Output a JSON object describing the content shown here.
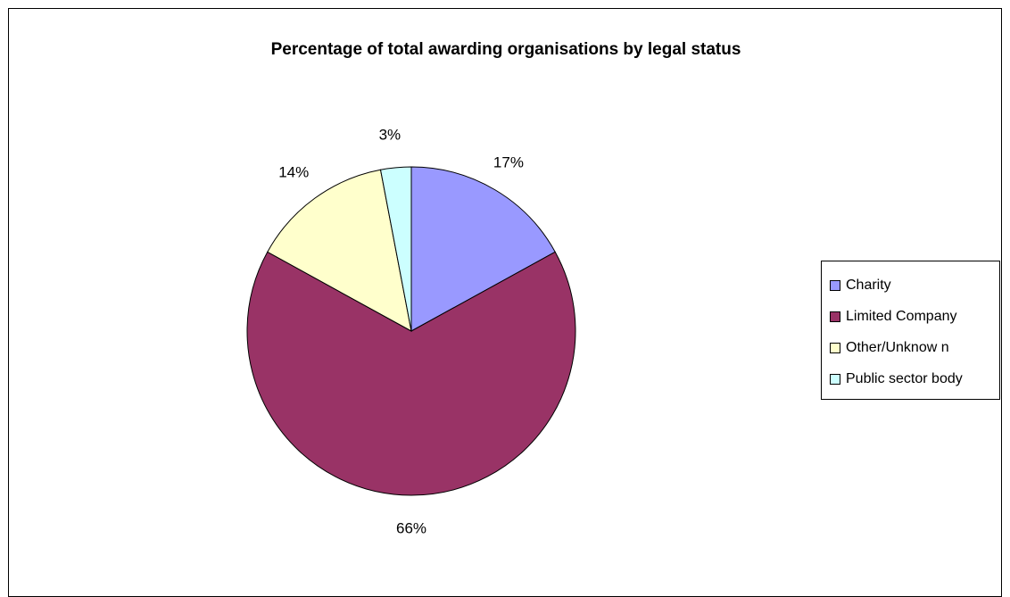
{
  "chart_data": {
    "type": "pie",
    "title": "Percentage of total awarding organisations by legal status",
    "categories": [
      "Charity",
      "Limited Company",
      "Other/Unknow n",
      "Public sector body"
    ],
    "values": [
      17,
      66,
      14,
      3
    ],
    "labels": [
      "17%",
      "66%",
      "14%",
      "3%"
    ],
    "colors": [
      "#9999ff",
      "#993366",
      "#ffffcc",
      "#ccffff"
    ],
    "start_angle_deg": 0,
    "direction": "clockwise",
    "legend_position": "right"
  }
}
